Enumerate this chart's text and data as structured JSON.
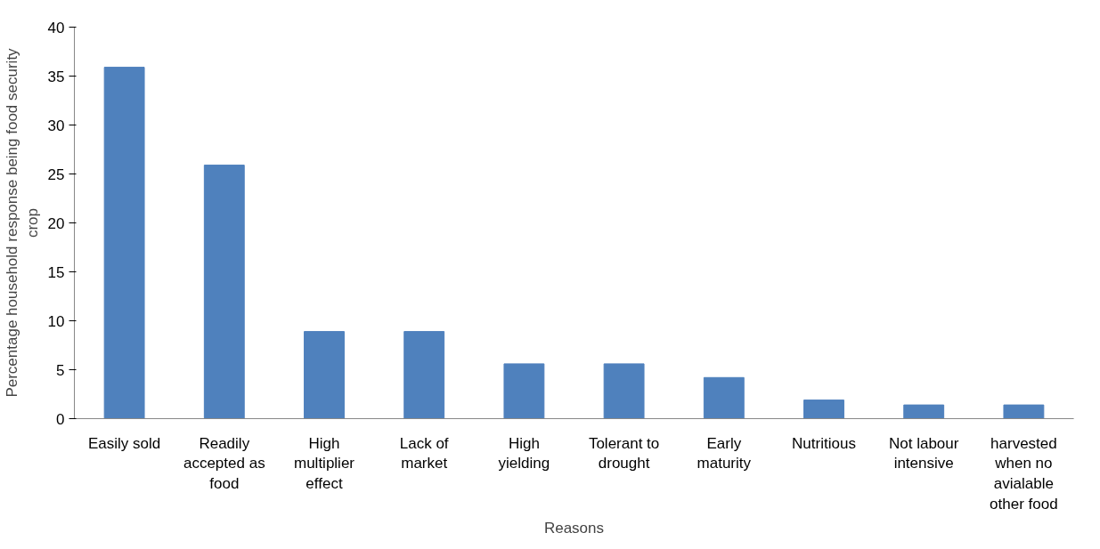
{
  "chart_data": {
    "type": "bar",
    "xlabel": "Reasons",
    "ylabel": "Percentage household response being food security crop",
    "categories": [
      "Easily sold",
      "Readily accepted as food",
      "High multiplier effect",
      "Lack of market",
      "High yielding",
      "Tolerant to drought",
      "Early maturity",
      "Nutritious",
      "Not labour intensive",
      "harvested when no avialable other food"
    ],
    "values": [
      35.9,
      25.9,
      8.9,
      8.9,
      5.6,
      5.6,
      4.2,
      1.9,
      1.4,
      1.4
    ],
    "color": "#4f81bd",
    "ylim": [
      0,
      40
    ],
    "yticks": [
      0,
      5,
      10,
      15,
      20,
      25,
      30,
      35,
      40
    ]
  }
}
